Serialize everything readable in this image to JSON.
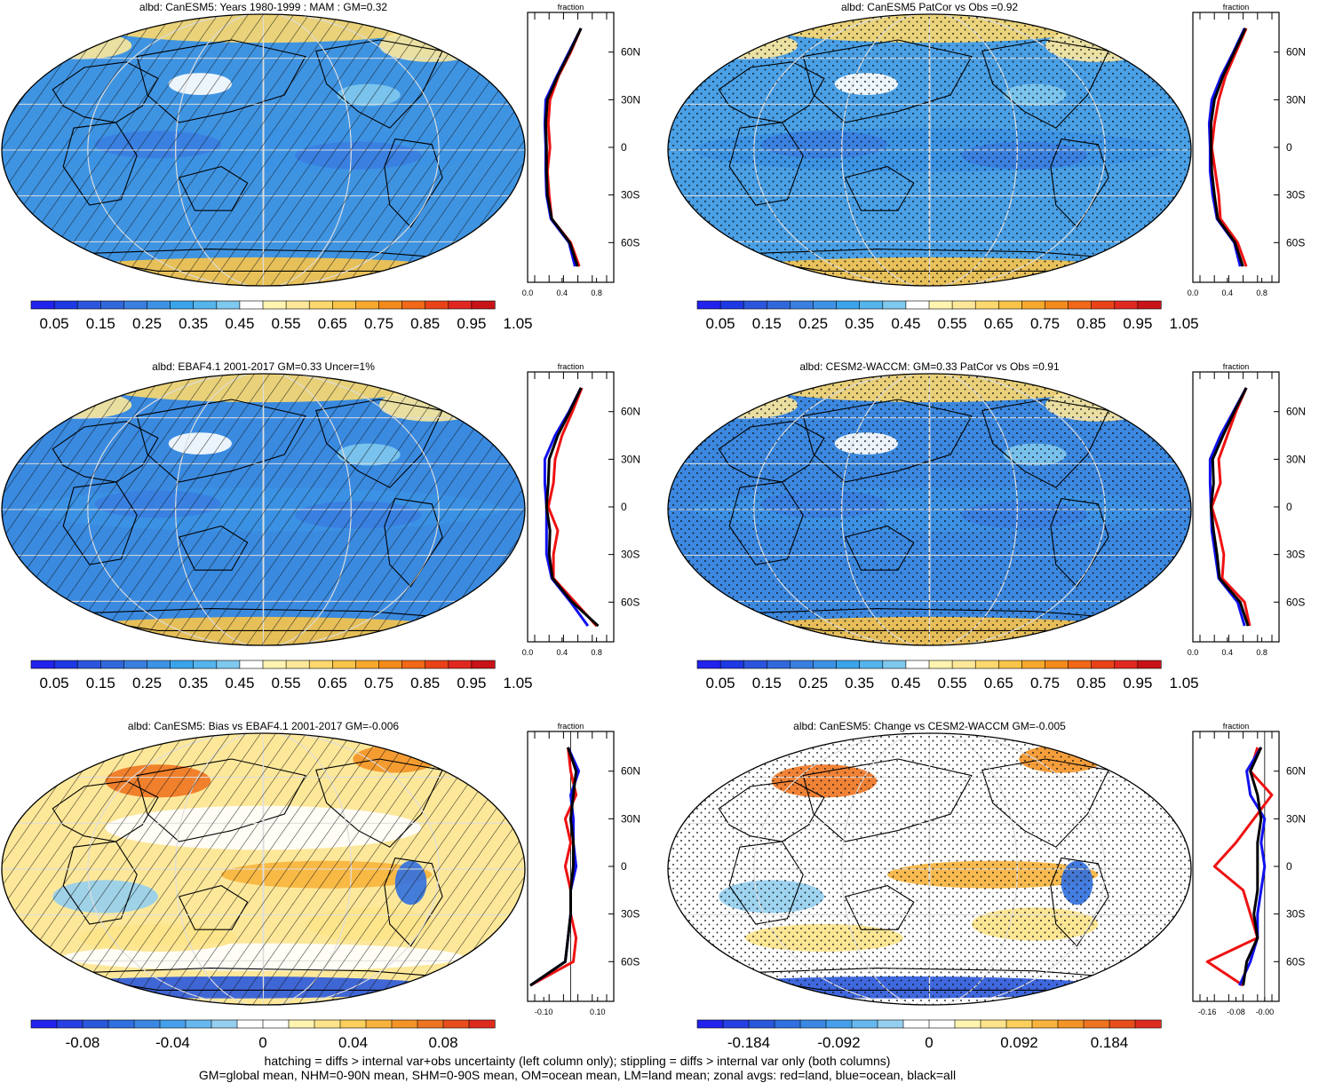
{
  "colors": {
    "land": "#ee1111",
    "ocean": "#1111ee",
    "all": "#000000",
    "abs_scale": [
      "#2222ee",
      "#1e38e4",
      "#2a55dc",
      "#3068dc",
      "#3a7ee0",
      "#3c92e4",
      "#3aa4ea",
      "#55b4ec",
      "#7fc8ee",
      "#ffffff",
      "#fff4b0",
      "#fde89a",
      "#fcd86e",
      "#f9c44a",
      "#f7a92e",
      "#f48a1c",
      "#f06818",
      "#ea4218",
      "#e02820",
      "#c81418"
    ],
    "diff_scale": [
      "#2222ee",
      "#2640e4",
      "#2a58dc",
      "#3070e0",
      "#3a88e4",
      "#44a0ea",
      "#66b8ee",
      "#95cff0",
      "#ffffff",
      "#ffffff",
      "#fff4b0",
      "#fde48a",
      "#fbcf5c",
      "#f8b43c",
      "#f49426",
      "#ef7420",
      "#e84e1c",
      "#de2c1c"
    ]
  },
  "footer": {
    "line1": "hatching = diffs > internal var+obs uncertainty (left column only); stippling = diffs > internal var only (both columns)",
    "line2": "GM=global mean, NHM=0-90N mean, SHM=0-90S mean, OM=ocean mean, LM=land mean; zonal avgs: red=land, blue=ocean, black=all"
  },
  "panels": [
    {
      "title": "albd: CanESM5: Years 1980-1999 : MAM : GM=0.32",
      "overlay": "hatch",
      "kind": "abs",
      "base": "#3f94e2",
      "colorbar_labels": [
        "0.05",
        "0.15",
        "0.25",
        "0.35",
        "0.45",
        "0.55",
        "0.65",
        "0.75",
        "0.85",
        "0.95",
        "1.05"
      ],
      "zonal_title": "fraction",
      "zonal_xticks": [
        "0.0",
        "0.4",
        "0.8"
      ],
      "lat_labels": [
        "60N",
        "30N",
        "0",
        "30S",
        "60S"
      ]
    },
    {
      "title": "albd: CanESM5 PatCor vs Obs =0.92",
      "overlay": "stipple",
      "kind": "abs",
      "base": "#4aa0e6",
      "colorbar_labels": [
        "0.05",
        "0.15",
        "0.25",
        "0.35",
        "0.45",
        "0.55",
        "0.65",
        "0.75",
        "0.85",
        "0.95",
        "1.05"
      ],
      "zonal_title": "fraction",
      "zonal_xticks": [
        "0.0",
        "0.4",
        "0.8"
      ],
      "lat_labels": [
        "60N",
        "30N",
        "0",
        "30S",
        "60S"
      ]
    },
    {
      "title": "albd: EBAF4.1 2001-2017 GM=0.33 Uncer=1%",
      "overlay": "hatch",
      "kind": "abs",
      "base": "#3a8ae0",
      "colorbar_labels": [
        "0.05",
        "0.15",
        "0.25",
        "0.35",
        "0.45",
        "0.55",
        "0.65",
        "0.75",
        "0.85",
        "0.95",
        "1.05"
      ],
      "zonal_title": "fraction",
      "zonal_xticks": [
        "0.0",
        "0.4",
        "0.8"
      ],
      "lat_labels": [
        "60N",
        "30N",
        "0",
        "30S",
        "60S"
      ]
    },
    {
      "title": "albd: CESM2-WACCM: GM=0.33 PatCor vs Obs =0.91",
      "overlay": "stipple",
      "kind": "abs",
      "base": "#3c88e0",
      "colorbar_labels": [
        "0.05",
        "0.15",
        "0.25",
        "0.35",
        "0.45",
        "0.55",
        "0.65",
        "0.75",
        "0.85",
        "0.95",
        "1.05"
      ],
      "zonal_title": "fraction",
      "zonal_xticks": [
        "0.0",
        "0.4",
        "0.8"
      ],
      "lat_labels": [
        "60N",
        "30N",
        "0",
        "30S",
        "60S"
      ]
    },
    {
      "title": "albd: CanESM5: Bias vs EBAF4.1 2001-2017 GM=-0.006",
      "overlay": "hatch",
      "kind": "diff",
      "base": "#fde89a",
      "colorbar_labels": [
        "-0.08",
        "-0.04",
        "0",
        "0.04",
        "0.08"
      ],
      "zonal_title": "fraction",
      "zonal_xticks": [
        "-0.10",
        "0.10"
      ],
      "lat_labels": [
        "60N",
        "30N",
        "0",
        "30S",
        "60S"
      ]
    },
    {
      "title": "albd: CanESM5: Change vs CESM2-WACCM GM=-0.005",
      "overlay": "stipple",
      "kind": "diff",
      "base": "#ffffff",
      "colorbar_labels": [
        "-0.184",
        "-0.092",
        "0",
        "0.092",
        "0.184"
      ],
      "zonal_title": "fraction",
      "zonal_xticks": [
        "-0.16",
        "-0.08",
        "-0.00"
      ],
      "lat_labels": [
        "60N",
        "30N",
        "0",
        "30S",
        "60S"
      ]
    }
  ],
  "chart_data": [
    {
      "type": "heatmap",
      "title": "albd: CanESM5: Years 1980-1999 : MAM : GM=0.32",
      "colorbar": {
        "ticks": [
          0.05,
          0.15,
          0.25,
          0.35,
          0.45,
          0.55,
          0.65,
          0.75,
          0.85,
          0.95,
          1.05
        ]
      },
      "zonal": {
        "xlabel": "fraction",
        "xlim": [
          0,
          1.0
        ],
        "lat": [
          75,
          60,
          45,
          30,
          15,
          0,
          -15,
          -30,
          -45,
          -60,
          -75
        ],
        "series": [
          {
            "values": [
              0.62,
              0.5,
              0.36,
              0.26,
              0.24,
              0.26,
              0.23,
              0.25,
              0.28,
              0.5,
              0.6
            ]
          },
          {
            "values": [
              0.62,
              0.48,
              0.34,
              0.21,
              0.2,
              0.21,
              0.21,
              0.22,
              0.27,
              0.48,
              0.55
            ]
          },
          {
            "values": [
              0.62,
              0.49,
              0.35,
              0.23,
              0.21,
              0.22,
              0.22,
              0.23,
              0.28,
              0.49,
              0.58
            ]
          }
        ]
      }
    },
    {
      "type": "heatmap",
      "title": "albd: CanESM5 PatCor vs Obs =0.92",
      "colorbar": {
        "ticks": [
          0.05,
          0.15,
          0.25,
          0.35,
          0.45,
          0.55,
          0.65,
          0.75,
          0.85,
          0.95,
          1.05
        ]
      },
      "zonal": {
        "xlabel": "fraction",
        "xlim": [
          0,
          1.0
        ],
        "lat": [
          75,
          60,
          45,
          30,
          15,
          0,
          -15,
          -30,
          -45,
          -60,
          -75
        ],
        "series": [
          {
            "values": [
              0.62,
              0.5,
              0.38,
              0.3,
              0.25,
              0.22,
              0.26,
              0.3,
              0.32,
              0.52,
              0.62
            ]
          },
          {
            "values": [
              0.6,
              0.47,
              0.33,
              0.22,
              0.19,
              0.2,
              0.2,
              0.23,
              0.28,
              0.48,
              0.55
            ]
          },
          {
            "values": [
              0.61,
              0.48,
              0.35,
              0.25,
              0.21,
              0.21,
              0.22,
              0.25,
              0.29,
              0.49,
              0.58
            ]
          }
        ]
      }
    },
    {
      "type": "heatmap",
      "title": "albd: EBAF4.1 2001-2017 GM=0.33 Uncer=1%",
      "colorbar": {
        "ticks": [
          0.05,
          0.15,
          0.25,
          0.35,
          0.45,
          0.55,
          0.65,
          0.75,
          0.85,
          0.95,
          1.05
        ]
      },
      "zonal": {
        "xlabel": "fraction",
        "xlim": [
          0,
          1.0
        ],
        "lat": [
          75,
          60,
          45,
          30,
          15,
          0,
          -15,
          -30,
          -45,
          -60,
          -75
        ],
        "series": [
          {
            "values": [
              0.63,
              0.52,
              0.4,
              0.32,
              0.3,
              0.24,
              0.35,
              0.3,
              0.3,
              0.55,
              0.8
            ]
          },
          {
            "values": [
              0.62,
              0.48,
              0.32,
              0.2,
              0.2,
              0.22,
              0.22,
              0.22,
              0.28,
              0.5,
              0.7
            ]
          },
          {
            "values": [
              0.62,
              0.49,
              0.35,
              0.25,
              0.24,
              0.22,
              0.26,
              0.25,
              0.29,
              0.52,
              0.82
            ]
          }
        ]
      }
    },
    {
      "type": "heatmap",
      "title": "albd: CESM2-WACCM: GM=0.33 PatCor vs Obs =0.91",
      "colorbar": {
        "ticks": [
          0.05,
          0.15,
          0.25,
          0.35,
          0.45,
          0.55,
          0.65,
          0.75,
          0.85,
          0.95,
          1.05
        ]
      },
      "zonal": {
        "xlabel": "fraction",
        "xlim": [
          0,
          1.0
        ],
        "lat": [
          75,
          60,
          45,
          30,
          15,
          0,
          -15,
          -30,
          -45,
          -60,
          -75
        ],
        "series": [
          {
            "values": [
              0.62,
              0.5,
              0.4,
              0.3,
              0.32,
              0.22,
              0.3,
              0.36,
              0.34,
              0.6,
              0.66
            ]
          },
          {
            "values": [
              0.62,
              0.47,
              0.32,
              0.2,
              0.2,
              0.21,
              0.22,
              0.26,
              0.3,
              0.52,
              0.6
            ]
          },
          {
            "values": [
              0.62,
              0.48,
              0.35,
              0.23,
              0.24,
              0.21,
              0.24,
              0.28,
              0.31,
              0.55,
              0.64
            ]
          }
        ]
      }
    },
    {
      "type": "heatmap",
      "title": "albd: CanESM5: Bias vs EBAF4.1 2001-2017 GM=-0.006",
      "colorbar": {
        "ticks": [
          -0.08,
          -0.04,
          0,
          0.04,
          0.08
        ]
      },
      "zonal": {
        "xlabel": "fraction",
        "xlim": [
          -0.16,
          0.16
        ],
        "lat": [
          75,
          60,
          45,
          30,
          15,
          0,
          -15,
          -30,
          -45,
          -60,
          -75
        ],
        "series": [
          {
            "values": [
              -0.01,
              0.0,
              0.02,
              -0.02,
              0.0,
              -0.02,
              0.0,
              0.0,
              0.02,
              0.01,
              -0.15
            ]
          },
          {
            "values": [
              -0.01,
              0.03,
              0.0,
              0.01,
              0.01,
              0.02,
              0.0,
              0.0,
              -0.01,
              -0.02,
              -0.15
            ]
          },
          {
            "values": [
              -0.01,
              0.02,
              0.01,
              0.0,
              0.01,
              0.01,
              0.0,
              0.0,
              -0.01,
              -0.02,
              -0.15
            ]
          }
        ]
      }
    },
    {
      "type": "heatmap",
      "title": "albd: CanESM5: Change vs CESM2-WACCM GM=-0.005",
      "colorbar": {
        "ticks": [
          -0.184,
          -0.092,
          0,
          0.092,
          0.184
        ]
      },
      "zonal": {
        "xlabel": "fraction",
        "xlim": [
          -0.2,
          0.04
        ],
        "lat": [
          75,
          60,
          45,
          30,
          15,
          0,
          -15,
          -30,
          -45,
          -60,
          -75
        ],
        "series": [
          {
            "values": [
              -0.02,
              -0.04,
              0.02,
              -0.03,
              -0.08,
              -0.14,
              -0.06,
              -0.04,
              -0.02,
              -0.16,
              -0.06
            ]
          },
          {
            "values": [
              -0.01,
              -0.05,
              -0.04,
              0.0,
              -0.01,
              0.0,
              -0.01,
              -0.02,
              -0.02,
              -0.04,
              -0.07
            ]
          },
          {
            "values": [
              -0.01,
              -0.04,
              -0.02,
              -0.01,
              -0.02,
              -0.02,
              -0.02,
              -0.03,
              -0.02,
              -0.05,
              -0.06
            ]
          }
        ]
      }
    }
  ]
}
